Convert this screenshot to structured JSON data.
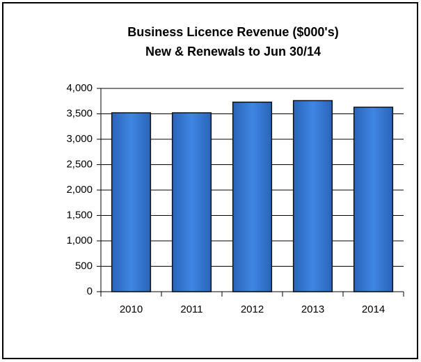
{
  "chart_data": {
    "type": "bar",
    "title": "Business Licence Revenue ($000's)",
    "subtitle": "New & Renewals to Jun 30/14",
    "categories": [
      "2010",
      "2011",
      "2012",
      "2013",
      "2014"
    ],
    "values": [
      3520,
      3520,
      3730,
      3760,
      3630
    ],
    "color": "#3b7fdb",
    "ylim": [
      0,
      4000
    ],
    "yticks": [
      0,
      500,
      {
        "value": 1000,
        "label": "1,000"
      },
      {
        "value": 1500,
        "label": "1,500"
      },
      {
        "value": 2000,
        "label": "2,000"
      },
      {
        "value": 2500,
        "label": "2,500"
      },
      {
        "value": 3000,
        "label": "3,000"
      },
      {
        "value": 3500,
        "label": "3,500"
      },
      {
        "value": 4000,
        "label": "4,000"
      }
    ],
    "grid": true
  }
}
